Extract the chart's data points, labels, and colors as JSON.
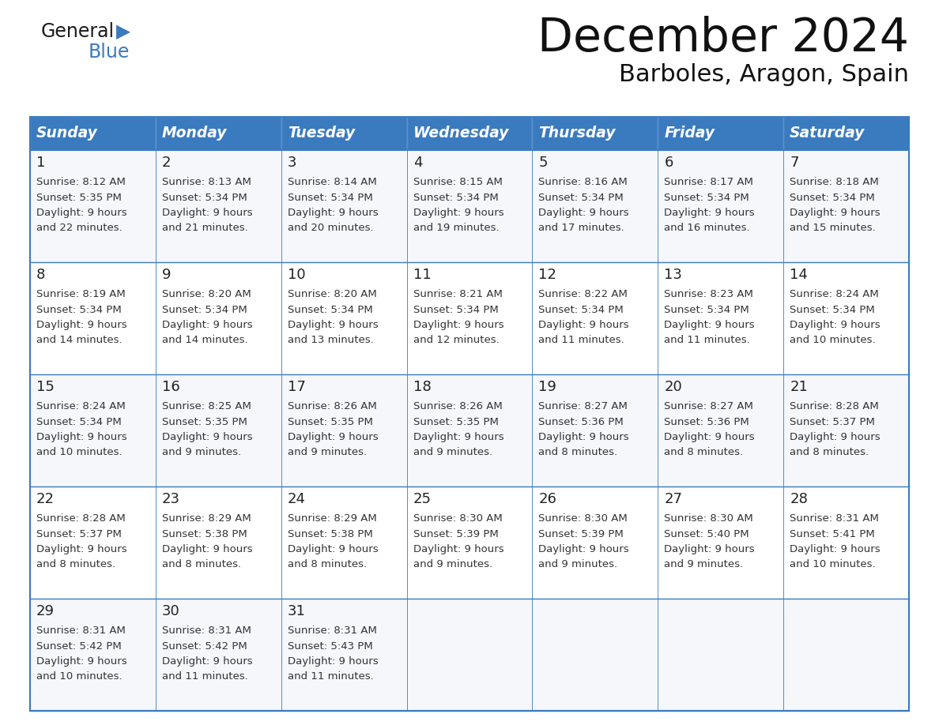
{
  "title": "December 2024",
  "subtitle": "Barboles, Aragon, Spain",
  "header_color": "#3a7abf",
  "header_text_color": "#ffffff",
  "border_color": "#3a7abf",
  "text_color": "#222222",
  "body_text_color": "#333333",
  "row_bg_even": "#f5f7fa",
  "row_bg_odd": "#ffffff",
  "day_headers": [
    "Sunday",
    "Monday",
    "Tuesday",
    "Wednesday",
    "Thursday",
    "Friday",
    "Saturday"
  ],
  "days": [
    {
      "day": 1,
      "col": 0,
      "row": 0,
      "sunrise": "8:12 AM",
      "sunset": "5:35 PM",
      "daylight_hours": 9,
      "daylight_minutes": 22
    },
    {
      "day": 2,
      "col": 1,
      "row": 0,
      "sunrise": "8:13 AM",
      "sunset": "5:34 PM",
      "daylight_hours": 9,
      "daylight_minutes": 21
    },
    {
      "day": 3,
      "col": 2,
      "row": 0,
      "sunrise": "8:14 AM",
      "sunset": "5:34 PM",
      "daylight_hours": 9,
      "daylight_minutes": 20
    },
    {
      "day": 4,
      "col": 3,
      "row": 0,
      "sunrise": "8:15 AM",
      "sunset": "5:34 PM",
      "daylight_hours": 9,
      "daylight_minutes": 19
    },
    {
      "day": 5,
      "col": 4,
      "row": 0,
      "sunrise": "8:16 AM",
      "sunset": "5:34 PM",
      "daylight_hours": 9,
      "daylight_minutes": 17
    },
    {
      "day": 6,
      "col": 5,
      "row": 0,
      "sunrise": "8:17 AM",
      "sunset": "5:34 PM",
      "daylight_hours": 9,
      "daylight_minutes": 16
    },
    {
      "day": 7,
      "col": 6,
      "row": 0,
      "sunrise": "8:18 AM",
      "sunset": "5:34 PM",
      "daylight_hours": 9,
      "daylight_minutes": 15
    },
    {
      "day": 8,
      "col": 0,
      "row": 1,
      "sunrise": "8:19 AM",
      "sunset": "5:34 PM",
      "daylight_hours": 9,
      "daylight_minutes": 14
    },
    {
      "day": 9,
      "col": 1,
      "row": 1,
      "sunrise": "8:20 AM",
      "sunset": "5:34 PM",
      "daylight_hours": 9,
      "daylight_minutes": 14
    },
    {
      "day": 10,
      "col": 2,
      "row": 1,
      "sunrise": "8:20 AM",
      "sunset": "5:34 PM",
      "daylight_hours": 9,
      "daylight_minutes": 13
    },
    {
      "day": 11,
      "col": 3,
      "row": 1,
      "sunrise": "8:21 AM",
      "sunset": "5:34 PM",
      "daylight_hours": 9,
      "daylight_minutes": 12
    },
    {
      "day": 12,
      "col": 4,
      "row": 1,
      "sunrise": "8:22 AM",
      "sunset": "5:34 PM",
      "daylight_hours": 9,
      "daylight_minutes": 11
    },
    {
      "day": 13,
      "col": 5,
      "row": 1,
      "sunrise": "8:23 AM",
      "sunset": "5:34 PM",
      "daylight_hours": 9,
      "daylight_minutes": 11
    },
    {
      "day": 14,
      "col": 6,
      "row": 1,
      "sunrise": "8:24 AM",
      "sunset": "5:34 PM",
      "daylight_hours": 9,
      "daylight_minutes": 10
    },
    {
      "day": 15,
      "col": 0,
      "row": 2,
      "sunrise": "8:24 AM",
      "sunset": "5:34 PM",
      "daylight_hours": 9,
      "daylight_minutes": 10
    },
    {
      "day": 16,
      "col": 1,
      "row": 2,
      "sunrise": "8:25 AM",
      "sunset": "5:35 PM",
      "daylight_hours": 9,
      "daylight_minutes": 9
    },
    {
      "day": 17,
      "col": 2,
      "row": 2,
      "sunrise": "8:26 AM",
      "sunset": "5:35 PM",
      "daylight_hours": 9,
      "daylight_minutes": 9
    },
    {
      "day": 18,
      "col": 3,
      "row": 2,
      "sunrise": "8:26 AM",
      "sunset": "5:35 PM",
      "daylight_hours": 9,
      "daylight_minutes": 9
    },
    {
      "day": 19,
      "col": 4,
      "row": 2,
      "sunrise": "8:27 AM",
      "sunset": "5:36 PM",
      "daylight_hours": 9,
      "daylight_minutes": 8
    },
    {
      "day": 20,
      "col": 5,
      "row": 2,
      "sunrise": "8:27 AM",
      "sunset": "5:36 PM",
      "daylight_hours": 9,
      "daylight_minutes": 8
    },
    {
      "day": 21,
      "col": 6,
      "row": 2,
      "sunrise": "8:28 AM",
      "sunset": "5:37 PM",
      "daylight_hours": 9,
      "daylight_minutes": 8
    },
    {
      "day": 22,
      "col": 0,
      "row": 3,
      "sunrise": "8:28 AM",
      "sunset": "5:37 PM",
      "daylight_hours": 9,
      "daylight_minutes": 8
    },
    {
      "day": 23,
      "col": 1,
      "row": 3,
      "sunrise": "8:29 AM",
      "sunset": "5:38 PM",
      "daylight_hours": 9,
      "daylight_minutes": 8
    },
    {
      "day": 24,
      "col": 2,
      "row": 3,
      "sunrise": "8:29 AM",
      "sunset": "5:38 PM",
      "daylight_hours": 9,
      "daylight_minutes": 8
    },
    {
      "day": 25,
      "col": 3,
      "row": 3,
      "sunrise": "8:30 AM",
      "sunset": "5:39 PM",
      "daylight_hours": 9,
      "daylight_minutes": 9
    },
    {
      "day": 26,
      "col": 4,
      "row": 3,
      "sunrise": "8:30 AM",
      "sunset": "5:39 PM",
      "daylight_hours": 9,
      "daylight_minutes": 9
    },
    {
      "day": 27,
      "col": 5,
      "row": 3,
      "sunrise": "8:30 AM",
      "sunset": "5:40 PM",
      "daylight_hours": 9,
      "daylight_minutes": 9
    },
    {
      "day": 28,
      "col": 6,
      "row": 3,
      "sunrise": "8:31 AM",
      "sunset": "5:41 PM",
      "daylight_hours": 9,
      "daylight_minutes": 10
    },
    {
      "day": 29,
      "col": 0,
      "row": 4,
      "sunrise": "8:31 AM",
      "sunset": "5:42 PM",
      "daylight_hours": 9,
      "daylight_minutes": 10
    },
    {
      "day": 30,
      "col": 1,
      "row": 4,
      "sunrise": "8:31 AM",
      "sunset": "5:42 PM",
      "daylight_hours": 9,
      "daylight_minutes": 11
    },
    {
      "day": 31,
      "col": 2,
      "row": 4,
      "sunrise": "8:31 AM",
      "sunset": "5:43 PM",
      "daylight_hours": 9,
      "daylight_minutes": 11
    }
  ]
}
